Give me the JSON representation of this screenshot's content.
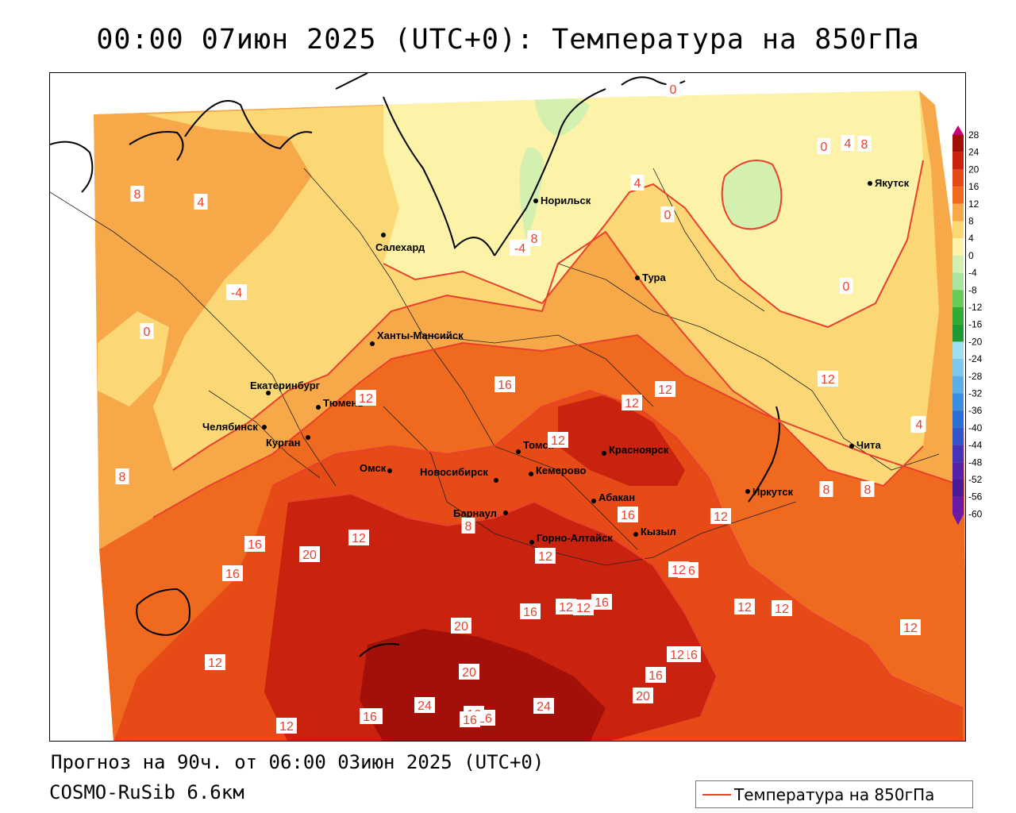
{
  "title": "00:00 07июн 2025 (UTC+0): Температура на 850гПа",
  "footer": {
    "forecast": "Прогноз на 90ч. от 06:00 03июн 2025 (UTC+0)",
    "model": "COSMO-RuSib 6.6км"
  },
  "legend": {
    "label": "Температура на 850гПа",
    "line_color": "#e8412c"
  },
  "colors": {
    "t_lt0": "#d4f0b0",
    "t_0_4": "#fdf3a8",
    "t_4_8": "#fbd776",
    "t_8_12": "#f7a94a",
    "t_12_16": "#ef6a1f",
    "t_16_20": "#e54a17",
    "t_20_24": "#c9230f",
    "t_gt24": "#a31009",
    "isoline": "#e8412c",
    "coast": "#000000"
  },
  "scale": {
    "values": [
      "28",
      "24",
      "20",
      "16",
      "12",
      "8",
      "4",
      "0",
      "-4",
      "-8",
      "-12",
      "-16",
      "-20",
      "-24",
      "-28",
      "-32",
      "-36",
      "-40",
      "-44",
      "-48",
      "-52",
      "-56",
      "-60"
    ],
    "colors": [
      "#c8007a",
      "#a31009",
      "#c9230f",
      "#e54a17",
      "#ef6a1f",
      "#f7a94a",
      "#fbd776",
      "#fdf3a8",
      "#d4f0b0",
      "#a8e6a0",
      "#66cc55",
      "#33aa33",
      "#1e9933",
      "#9fe0f0",
      "#7cc8ef",
      "#5aaeea",
      "#3c8ee0",
      "#2a6fd6",
      "#3355cc",
      "#4433bb",
      "#5522aa",
      "#4a1a99",
      "#6a1aa8"
    ]
  },
  "cities": [
    {
      "name": "Норильск"
    },
    {
      "name": "Якутск"
    },
    {
      "name": "Салехард"
    },
    {
      "name": "Тура"
    },
    {
      "name": "Ханты-Мансийск"
    },
    {
      "name": "Екатеринбург"
    },
    {
      "name": "Тюмень"
    },
    {
      "name": "Челябинск"
    },
    {
      "name": "Курган"
    },
    {
      "name": "Томск"
    },
    {
      "name": "Красноярск"
    },
    {
      "name": "Омск"
    },
    {
      "name": "Новосибирск"
    },
    {
      "name": "Кемерово"
    },
    {
      "name": "Абакан"
    },
    {
      "name": "Барнаул"
    },
    {
      "name": "Горно-Алтайск"
    },
    {
      "name": "Кызыл"
    },
    {
      "name": "Иркутск"
    },
    {
      "name": "Чита"
    }
  ],
  "iso_labels": [
    "0",
    "4",
    "8",
    "-4",
    "0",
    "8",
    "4",
    "0",
    "0",
    "8",
    "4",
    "-4",
    "0",
    "4",
    "8",
    "8",
    "12",
    "12",
    "16",
    "12",
    "12",
    "12",
    "4",
    "12",
    "8",
    "8",
    "8",
    "16",
    "12",
    "16",
    "12",
    "16",
    "16",
    "12",
    "12",
    "20",
    "12",
    "16",
    "16",
    "12",
    "12",
    "12",
    "16",
    "12",
    "12",
    "20",
    "12",
    "16",
    "20",
    "20",
    "16",
    "16",
    "24",
    "20",
    "24",
    "16",
    "16",
    "4"
  ]
}
